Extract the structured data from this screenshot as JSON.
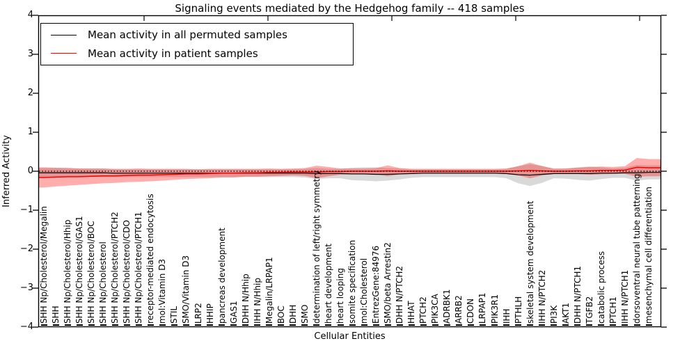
{
  "chart": {
    "title": "Signaling events mediated by the Hedgehog family -- 418 samples",
    "xlabel": "Cellular Entities",
    "ylabel": "Inferred Activity"
  },
  "legend": {
    "items": [
      {
        "label": "Mean activity in all permuted samples",
        "color": "#000000"
      },
      {
        "label": "Mean activity in patient samples",
        "color": "#f80000"
      }
    ]
  },
  "axis": {
    "yticklabels": [
      "4",
      "3",
      "2",
      "1",
      "0",
      "−1",
      "−2",
      "−3",
      "−4"
    ]
  },
  "colors": {
    "permuted_line": "#000000",
    "patient_line": "#f80000",
    "permuted_band": "rgba(130,130,130,0.30)",
    "patient_band": "rgba(255,0,0,0.32)",
    "zero_line": "#000000",
    "frame": "#000000"
  },
  "chart_data": {
    "type": "line",
    "title": "Signaling events mediated by the Hedgehog family -- 418 samples",
    "xlabel": "Cellular Entities",
    "ylabel": "Inferred Activity",
    "ylim": [
      -4,
      4
    ],
    "yticks": [
      4,
      3,
      2,
      1,
      0,
      -1,
      -2,
      -3,
      -4
    ],
    "legend_position": "upper left",
    "band_meaning": "shaded region around each mean line (std dev); red = patient, gray = permuted",
    "zero_reference_line": "dotted black line at y=0",
    "categories": [
      "SHH Np/Cholesterol/Megalin",
      "SHH",
      "SHH Np/Cholesterol/Hhip",
      "SHH Np/Cholesterol/GAS1",
      "SHH Np/Cholesterol/BOC",
      "SHH Np/Cholesterol",
      "SHH Np/Cholesterol/PTCH2",
      "SHH Np/Cholesterol/CDO",
      "SHH Np/Cholesterol/PTCH1",
      "receptor-mediated endocytosis",
      "mol:Vitamin D3",
      "STIL",
      "SMO/Vitamin D3",
      "LRP2",
      "HHIP",
      "pancreas development",
      "GAS1",
      "DHH N/Hhip",
      "IHH N/Hhip",
      "Megalin/LRPAP1",
      "BOC",
      "DHH",
      "SMO",
      "determination of left/right symmetry",
      "heart development",
      "heart looping",
      "somite specification",
      "mol:Cholesterol",
      "EntrezGene:84976",
      "SMO/beta Arrestin2",
      "DHH N/PTCH2",
      "HHAT",
      "PTCH2",
      "PIK3CA",
      "ADRBK1",
      "ARRB2",
      "CDON",
      "LRPAP1",
      "PIK3R1",
      "IHH",
      "PTHLH",
      "skeletal system development",
      "IHH N/PTCH2",
      "PI3K",
      "AKT1",
      "DHH N/PTCH1",
      "TGFB2",
      "catabolic process",
      "PTCH1",
      "IHH N/PTCH1",
      "dorsoventral neural tube patterning",
      "mesenchymal cell differentiation"
    ],
    "series": [
      {
        "name": "Mean activity in all permuted samples",
        "color": "#000000",
        "values": [
          -0.04,
          -0.04,
          -0.04,
          -0.04,
          -0.04,
          -0.04,
          -0.05,
          -0.05,
          -0.05,
          -0.05,
          -0.05,
          -0.05,
          -0.05,
          -0.05,
          -0.05,
          -0.05,
          -0.05,
          -0.05,
          -0.05,
          -0.05,
          -0.05,
          -0.05,
          -0.05,
          -0.06,
          -0.06,
          -0.06,
          -0.07,
          -0.07,
          -0.08,
          -0.08,
          -0.07,
          -0.06,
          -0.05,
          -0.05,
          -0.05,
          -0.05,
          -0.05,
          -0.05,
          -0.05,
          -0.06,
          -0.09,
          -0.1,
          -0.08,
          -0.06,
          -0.06,
          -0.06,
          -0.06,
          -0.05,
          -0.05,
          -0.04,
          -0.04,
          -0.03
        ],
        "band_half_width": [
          0.12,
          0.12,
          0.11,
          0.11,
          0.11,
          0.11,
          0.1,
          0.1,
          0.1,
          0.1,
          0.1,
          0.1,
          0.1,
          0.1,
          0.1,
          0.1,
          0.1,
          0.1,
          0.1,
          0.1,
          0.1,
          0.1,
          0.11,
          0.14,
          0.12,
          0.12,
          0.16,
          0.17,
          0.18,
          0.16,
          0.14,
          0.11,
          0.1,
          0.1,
          0.1,
          0.1,
          0.1,
          0.1,
          0.1,
          0.12,
          0.22,
          0.28,
          0.22,
          0.12,
          0.13,
          0.16,
          0.18,
          0.15,
          0.12,
          0.13,
          0.2,
          0.18
        ]
      },
      {
        "name": "Mean activity in patient samples",
        "color": "#f80000",
        "values": [
          -0.16,
          -0.15,
          -0.14,
          -0.14,
          -0.13,
          -0.12,
          -0.12,
          -0.11,
          -0.1,
          -0.1,
          -0.09,
          -0.08,
          -0.07,
          -0.07,
          -0.06,
          -0.05,
          -0.05,
          -0.04,
          -0.04,
          -0.03,
          -0.03,
          -0.02,
          -0.02,
          -0.02,
          -0.01,
          -0.01,
          0.0,
          0.0,
          0.0,
          0.01,
          0.0,
          0.0,
          0.0,
          0.0,
          0.0,
          0.0,
          0.0,
          0.0,
          0.0,
          0.0,
          0.01,
          0.02,
          0.01,
          0.0,
          0.0,
          0.01,
          0.01,
          0.02,
          0.02,
          0.03,
          0.1,
          0.09
        ],
        "band_half_width": [
          0.26,
          0.24,
          0.23,
          0.21,
          0.2,
          0.19,
          0.18,
          0.17,
          0.17,
          0.16,
          0.15,
          0.14,
          0.13,
          0.12,
          0.12,
          0.11,
          0.11,
          0.1,
          0.1,
          0.1,
          0.09,
          0.09,
          0.1,
          0.16,
          0.12,
          0.08,
          0.07,
          0.07,
          0.08,
          0.14,
          0.08,
          0.06,
          0.06,
          0.06,
          0.06,
          0.06,
          0.06,
          0.06,
          0.06,
          0.07,
          0.12,
          0.2,
          0.12,
          0.07,
          0.07,
          0.08,
          0.1,
          0.1,
          0.09,
          0.1,
          0.24,
          0.22
        ]
      }
    ]
  }
}
